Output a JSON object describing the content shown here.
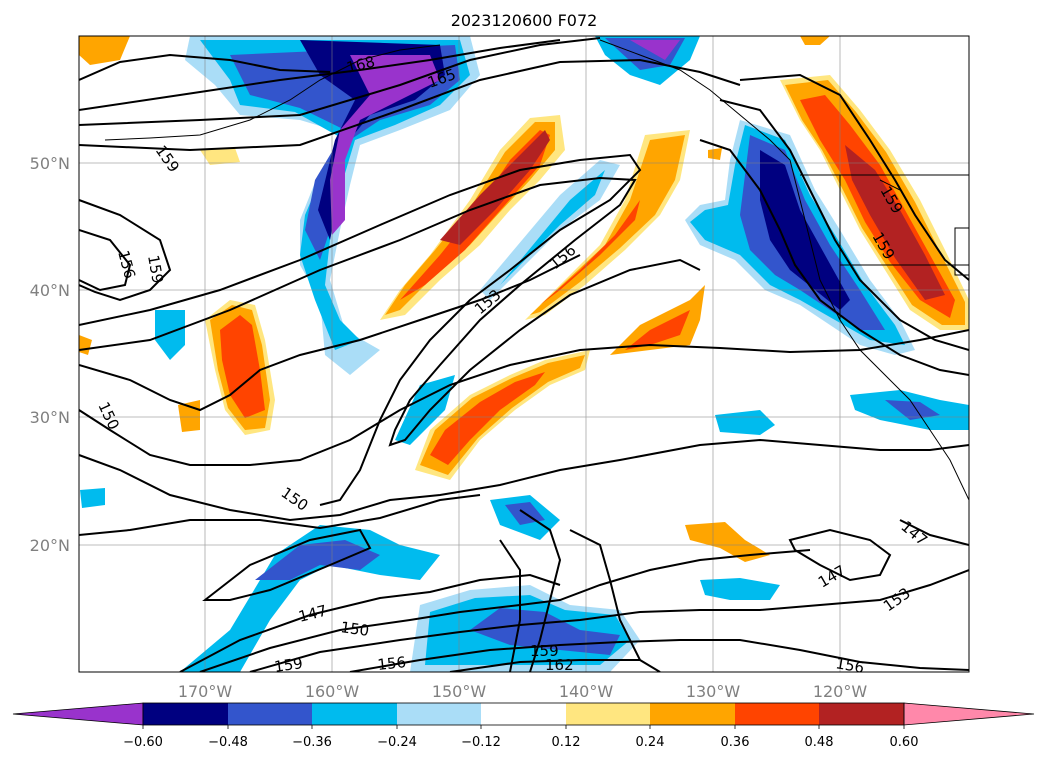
{
  "title": "2023120600 F072",
  "map": {
    "lat_labels": [
      "50°N",
      "40°N",
      "30°N",
      "20°N"
    ],
    "lon_labels": [
      "170°W",
      "160°W",
      "150°W",
      "140°W",
      "130°W",
      "120°W"
    ],
    "colors": {
      "c1": "#9933cc",
      "c2": "#000080",
      "c3": "#3355cc",
      "c4": "#00bbee",
      "c5": "#aaddf7",
      "p1": "#ffe680",
      "p2": "#ffa500",
      "p3": "#ff4400",
      "p4": "#b22222",
      "p5": "#ff88aa"
    }
  },
  "contour_labels": [
    {
      "text": "168"
    },
    {
      "text": "165"
    },
    {
      "text": "159"
    },
    {
      "text": "156"
    },
    {
      "text": "159"
    },
    {
      "text": "150"
    },
    {
      "text": "150"
    },
    {
      "text": "153"
    },
    {
      "text": "156"
    },
    {
      "text": "159"
    },
    {
      "text": "159"
    },
    {
      "text": "147"
    },
    {
      "text": "150"
    },
    {
      "text": "159"
    },
    {
      "text": "156"
    },
    {
      "text": "159"
    },
    {
      "text": "162"
    },
    {
      "text": "147"
    },
    {
      "text": "147"
    },
    {
      "text": "153"
    },
    {
      "text": "156"
    }
  ],
  "colorbar": {
    "ticks": [
      "−0.60",
      "−0.48",
      "−0.36",
      "−0.24",
      "−0.12",
      "0.12",
      "0.24",
      "0.36",
      "0.48",
      "0.60"
    ],
    "colors": [
      "#9933cc",
      "#000080",
      "#3355cc",
      "#00bbee",
      "#aaddf7",
      "#ffffff",
      "#ffe680",
      "#ffa500",
      "#ff4400",
      "#b22222",
      "#ff88aa"
    ]
  }
}
